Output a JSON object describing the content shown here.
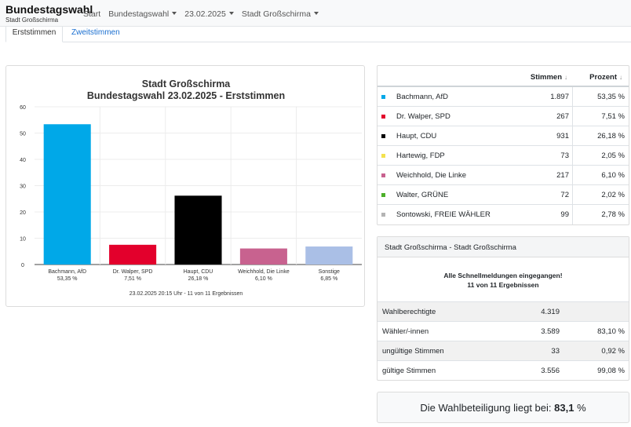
{
  "header": {
    "title": "Bundestagswahl",
    "subtitle": "Stadt Großschirma",
    "nav": [
      {
        "label": "Start",
        "dropdown": false
      },
      {
        "label": "Bundestagswahl",
        "dropdown": true
      },
      {
        "label": "23.02.2025",
        "dropdown": true
      },
      {
        "label": "Stadt Großschirma",
        "dropdown": true
      }
    ]
  },
  "tabs": {
    "active": "Erststimmen",
    "inactive": "Zweitstimmen"
  },
  "chart_data": {
    "type": "bar",
    "title": "Stadt Großschirma",
    "subtitle": "Bundestagswahl 23.02.2025  - Erststimmen",
    "categories": [
      "Bachmann, AfD",
      "Dr. Walper, SPD",
      "Haupt, CDU",
      "Weichhold, Die Linke",
      "Sonstige"
    ],
    "value_labels": [
      "53,35 %",
      "7,51 %",
      "26,18 %",
      "6,10 %",
      "6,85 %"
    ],
    "values": [
      53.35,
      7.51,
      26.18,
      6.1,
      6.85
    ],
    "colors": [
      "#00a8e8",
      "#e3002c",
      "#000000",
      "#c8628f",
      "#aabfe6"
    ],
    "ylim": [
      0,
      60
    ],
    "yticks": [
      0,
      10,
      20,
      30,
      40,
      50,
      60
    ],
    "footnote": "23.02.2025 20:15 Uhr - 11 von 11 Ergebnissen"
  },
  "results": {
    "col_votes": "Stimmen",
    "col_percent": "Prozent",
    "rows": [
      {
        "name": "Bachmann, AfD",
        "votes": "1.897",
        "percent": "53,35 %",
        "color": "#00a8e8"
      },
      {
        "name": "Dr. Walper, SPD",
        "votes": "267",
        "percent": "7,51 %",
        "color": "#e3002c"
      },
      {
        "name": "Haupt, CDU",
        "votes": "931",
        "percent": "26,18 %",
        "color": "#000000"
      },
      {
        "name": "Hartewig, FDP",
        "votes": "73",
        "percent": "2,05 %",
        "color": "#f3e24f"
      },
      {
        "name": "Weichhold, Die Linke",
        "votes": "217",
        "percent": "6,10 %",
        "color": "#c8628f"
      },
      {
        "name": "Walter, GRÜNE",
        "votes": "72",
        "percent": "2,02 %",
        "color": "#4caf2a"
      },
      {
        "name": "Sontowski, FREIE WÄHLER",
        "votes": "99",
        "percent": "2,78 %",
        "color": "#b4b4b4"
      }
    ]
  },
  "info": {
    "header": "Stadt Großschirma - Stadt Großschirma",
    "message_line1": "Alle Schnellmeldungen eingegangen!",
    "message_line2": "11 von 11 Ergebnissen",
    "rows": [
      {
        "label": "Wahlberechtigte",
        "value": "4.319",
        "percent": ""
      },
      {
        "label": "Wähler/-innen",
        "value": "3.589",
        "percent": "83,10 %"
      },
      {
        "label": "ungültige Stimmen",
        "value": "33",
        "percent": "0,92 %"
      },
      {
        "label": "gültige Stimmen",
        "value": "3.556",
        "percent": "99,08 %"
      }
    ]
  },
  "turnout": {
    "prefix": "Die Wahlbeteiligung liegt bei:",
    "value": "83,1",
    "suffix": "%"
  }
}
